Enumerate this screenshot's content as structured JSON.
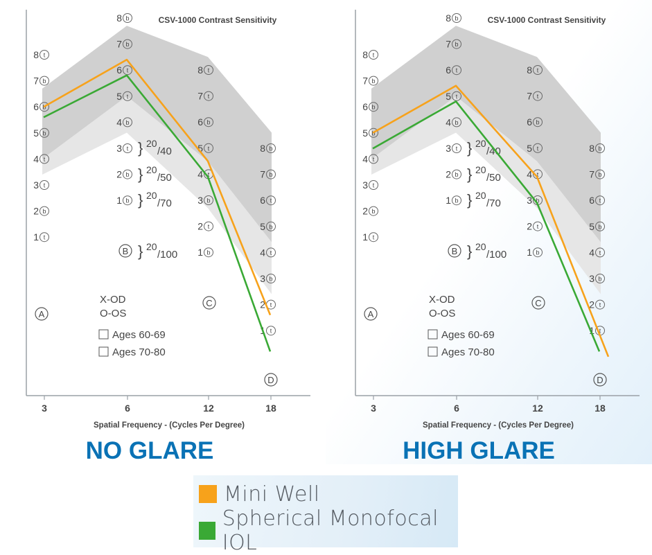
{
  "chart_data": [
    {
      "type": "line",
      "title": "CSV-1000 Contrast Sensitivity",
      "subtitle": "NO GLARE",
      "xlabel": "Spatial Frequency - (Cycles Per Degree)",
      "x_ticks": [
        "3",
        "6",
        "12",
        "18"
      ],
      "x": [
        3,
        6,
        12,
        18
      ],
      "series": [
        {
          "name": "Mini Well",
          "color": "#f7a21b",
          "values": [
            6.0,
            6.4,
            4.5,
            1.6
          ]
        },
        {
          "name": "Spherical Monofocal IOL",
          "color": "#3aa935",
          "values": [
            5.6,
            5.8,
            3.9,
            0.2
          ]
        }
      ],
      "columns": [
        {
          "x": 3,
          "patch_letter": "A",
          "patches": [
            "8t",
            "7b",
            "6b",
            "5b",
            "4t",
            "3t",
            "2b",
            "1t"
          ]
        },
        {
          "x": 6,
          "patch_letter": "B",
          "patches": [
            "8b",
            "7b",
            "6t",
            "5t",
            "4b",
            "3t",
            "2b",
            "1b"
          ]
        },
        {
          "x": 12,
          "patch_letter": "C",
          "patches": [
            "8t",
            "7t",
            "6b",
            "5t",
            "4t",
            "3b",
            "2t",
            "1b"
          ]
        },
        {
          "x": 18,
          "patch_letter": "D",
          "patches": [
            "8b",
            "7b",
            "6t",
            "5b",
            "4t",
            "3b",
            "2t",
            "1t"
          ]
        }
      ],
      "acuity_labels": [
        {
          "num": "20",
          "den": "/40"
        },
        {
          "num": "20",
          "den": "/50"
        },
        {
          "num": "20",
          "den": "/70"
        },
        {
          "num": "20",
          "den": "/100"
        }
      ],
      "eye_notes": [
        "X-OD",
        "O-OS"
      ],
      "age_groups": [
        "Ages 60-69",
        "Ages 70-80"
      ]
    },
    {
      "type": "line",
      "title": "CSV-1000 Contrast Sensitivity",
      "subtitle": "HIGH GLARE",
      "xlabel": "Spatial Frequency - (Cycles Per Degree)",
      "x_ticks": [
        "3",
        "6",
        "12",
        "18"
      ],
      "x": [
        3,
        6,
        12,
        18
      ],
      "series": [
        {
          "name": "Mini Well",
          "color": "#f7a21b",
          "values": [
            5.0,
            5.4,
            3.9,
            0.0
          ]
        },
        {
          "name": "Spherical Monofocal IOL",
          "color": "#3aa935",
          "values": [
            4.4,
            4.8,
            2.9,
            0.2
          ]
        }
      ],
      "columns": [
        {
          "x": 3,
          "patch_letter": "A",
          "patches": [
            "8t",
            "7b",
            "6b",
            "5b",
            "4t",
            "3t",
            "2b",
            "1t"
          ]
        },
        {
          "x": 6,
          "patch_letter": "B",
          "patches": [
            "8b",
            "7b",
            "6t",
            "5t",
            "4b",
            "3t",
            "2b",
            "1b"
          ]
        },
        {
          "x": 12,
          "patch_letter": "C",
          "patches": [
            "8t",
            "7t",
            "6b",
            "5t",
            "4t",
            "3b",
            "2t",
            "1b"
          ]
        },
        {
          "x": 18,
          "patch_letter": "D",
          "patches": [
            "8b",
            "7b",
            "6t",
            "5b",
            "4t",
            "3b",
            "2t",
            "1t"
          ]
        }
      ],
      "acuity_labels": [
        {
          "num": "20",
          "den": "/40"
        },
        {
          "num": "20",
          "den": "/50"
        },
        {
          "num": "20",
          "den": "/70"
        },
        {
          "num": "20",
          "den": "/100"
        }
      ],
      "eye_notes": [
        "X-OD",
        "O-OS"
      ],
      "age_groups": [
        "Ages 60-69",
        "Ages 70-80"
      ]
    }
  ],
  "legend": [
    {
      "label": "Mini Well",
      "color": "#f7a21b"
    },
    {
      "label": "Spherical Monofocal IOL",
      "color": "#3aa935"
    }
  ],
  "colors": {
    "title_blue": "#0a72b5",
    "axis": "#9aa0a6",
    "text": "#444444",
    "band_outer": "#e6e6e6",
    "band_inner": "#d0d0d0"
  }
}
